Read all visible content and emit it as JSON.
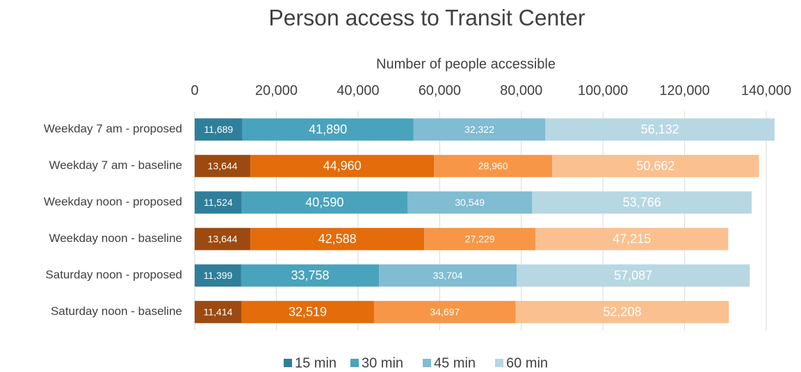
{
  "chart_data": {
    "type": "stacked-barh",
    "title": "Person access to Transit Center",
    "x_label": "Number of people accessible",
    "categories": [
      "Weekday 7 am - proposed",
      "Weekday 7 am - baseline",
      "Weekday noon - proposed",
      "Weekday noon - baseline",
      "Saturday noon - proposed",
      "Saturday noon - baseline"
    ],
    "series": [
      {
        "name": "15 min",
        "color": "#2f7f9a",
        "colors": [
          "#2f7f9a",
          "#9c4a10",
          "#2f7f9a",
          "#9c4a10",
          "#2f7f9a",
          "#9c4a10"
        ],
        "values": [
          11689,
          13644,
          11524,
          13644,
          11399,
          11414
        ],
        "value_labels": [
          "11,689",
          "13,644",
          "11,524",
          "13,644",
          "11,399",
          "11,414"
        ]
      },
      {
        "name": "30 min",
        "color": "#4aa3bc",
        "colors": [
          "#4aa3bc",
          "#e46c0a",
          "#4aa3bc",
          "#e46c0a",
          "#4aa3bc",
          "#e46c0a"
        ],
        "values": [
          41890,
          44960,
          40590,
          42588,
          33758,
          32519
        ],
        "value_labels": [
          "41,890",
          "44,960",
          "40,590",
          "42,588",
          "33,758",
          "32,519"
        ]
      },
      {
        "name": "45 min",
        "color": "#80bcd2",
        "colors": [
          "#80bcd2",
          "#f79646",
          "#80bcd2",
          "#f79646",
          "#80bcd2",
          "#f79646"
        ],
        "values": [
          32322,
          28960,
          30549,
          27229,
          33704,
          34697
        ],
        "value_labels": [
          "32,322",
          "28,960",
          "30,549",
          "27,229",
          "33,704",
          "34,697"
        ]
      },
      {
        "name": "60 min",
        "color": "#b7d7e3",
        "colors": [
          "#b7d7e3",
          "#fac090",
          "#b7d7e3",
          "#fac090",
          "#b7d7e3",
          "#fac090"
        ],
        "values": [
          56132,
          50662,
          53766,
          47215,
          57087,
          52208
        ],
        "value_labels": [
          "56,132",
          "50,662",
          "53,766",
          "47,215",
          "57,087",
          "52,208"
        ]
      }
    ],
    "xlim": [
      0,
      140000
    ],
    "xticks": [
      0,
      {
        "value": 20000,
        "label": "20,000"
      },
      {
        "value": 40000,
        "label": "40,000"
      },
      {
        "value": 60000,
        "label": "60,000"
      },
      {
        "value": 80000,
        "label": "80,000"
      },
      {
        "value": 100000,
        "label": "100,000"
      },
      {
        "value": 120000,
        "label": "120,000"
      },
      {
        "value": 140000,
        "label": "140,000"
      }
    ],
    "grid": true,
    "legend": "bottom"
  }
}
